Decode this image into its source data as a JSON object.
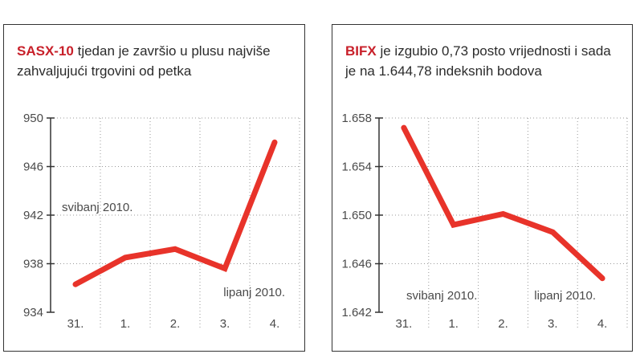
{
  "charts": [
    {
      "caption_lead": "SASX-10",
      "caption_rest": " tjedan je završio u plusu najviše zahvaljujući trgovini od petka",
      "annotations": [
        "svibanj 2010.",
        "lipanj 2010."
      ]
    },
    {
      "caption_lead": "BIFX",
      "caption_rest": " je izgubio 0,73 posto vrijednosti i sada je na 1.644,78 indeksnih bodova",
      "annotations": [
        "svibanj 2010.",
        "lipanj 2010."
      ]
    }
  ],
  "colors": {
    "line": "#e8332a",
    "lead": "#c8202a",
    "grid": "#9a9a9a",
    "axis": "#333333"
  },
  "chart_data": [
    {
      "type": "line",
      "title": "SASX-10",
      "categories": [
        "31.",
        "1.",
        "2.",
        "3.",
        "4."
      ],
      "y_tick_labels": [
        "934",
        "938",
        "942",
        "946",
        "950"
      ],
      "ylim": [
        934,
        950
      ],
      "series": [
        {
          "values": [
            936.3,
            938.5,
            939.2,
            937.6,
            948.0
          ]
        }
      ],
      "annotations": [
        "svibanj 2010.",
        "lipanj 2010."
      ],
      "grid": true
    },
    {
      "type": "line",
      "title": "BIFX",
      "categories": [
        "31.",
        "1.",
        "2.",
        "3.",
        "4."
      ],
      "y_tick_labels": [
        "1.642",
        "1.646",
        "1.650",
        "1.654",
        "1.658"
      ],
      "ylim": [
        1642,
        1658
      ],
      "series": [
        {
          "values": [
            1657.2,
            1649.2,
            1650.1,
            1648.6,
            1644.8
          ]
        }
      ],
      "annotations": [
        "svibanj 2010.",
        "lipanj 2010."
      ],
      "grid": true
    }
  ]
}
